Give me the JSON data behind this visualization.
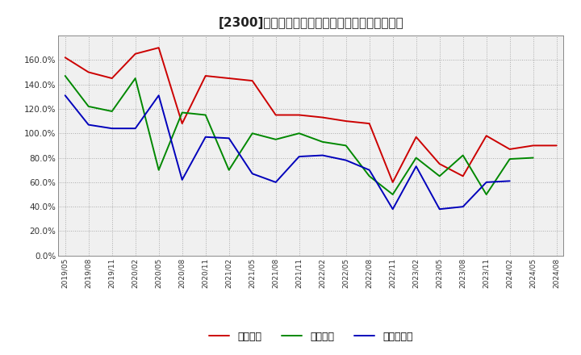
{
  "title": "[2300]　流動比率、当座比率、現預金比率の推移",
  "x_labels": [
    "2019/05",
    "2019/08",
    "2019/11",
    "2020/02",
    "2020/05",
    "2020/08",
    "2020/11",
    "2021/02",
    "2021/05",
    "2021/08",
    "2021/11",
    "2022/02",
    "2022/05",
    "2022/08",
    "2022/11",
    "2023/02",
    "2023/05",
    "2023/08",
    "2023/11",
    "2024/02",
    "2024/05",
    "2024/08"
  ],
  "ryudo": [
    162,
    150,
    145,
    165,
    170,
    108,
    147,
    145,
    143,
    115,
    115,
    113,
    110,
    108,
    60,
    97,
    75,
    65,
    98,
    87,
    90,
    90
  ],
  "toza": [
    147,
    122,
    118,
    145,
    70,
    117,
    115,
    70,
    100,
    95,
    100,
    93,
    90,
    65,
    50,
    80,
    65,
    82,
    50,
    79,
    80,
    null
  ],
  "genkin": [
    131,
    107,
    104,
    104,
    131,
    62,
    97,
    96,
    67,
    60,
    81,
    82,
    78,
    70,
    38,
    73,
    38,
    40,
    60,
    61,
    null,
    null
  ],
  "line_colors": {
    "ryudo": "#cc0000",
    "toza": "#008800",
    "genkin": "#0000bb"
  },
  "legend_labels": {
    "ryudo": "流動比率",
    "toza": "当座比率",
    "genkin": "現預金比率"
  },
  "ylim": [
    0,
    180
  ],
  "yticks": [
    0,
    20,
    40,
    60,
    80,
    100,
    120,
    140,
    160
  ],
  "background_color": "#ffffff",
  "grid_color": "#999999",
  "title_fontsize": 11,
  "plot_bg_color": "#f0f0f0"
}
